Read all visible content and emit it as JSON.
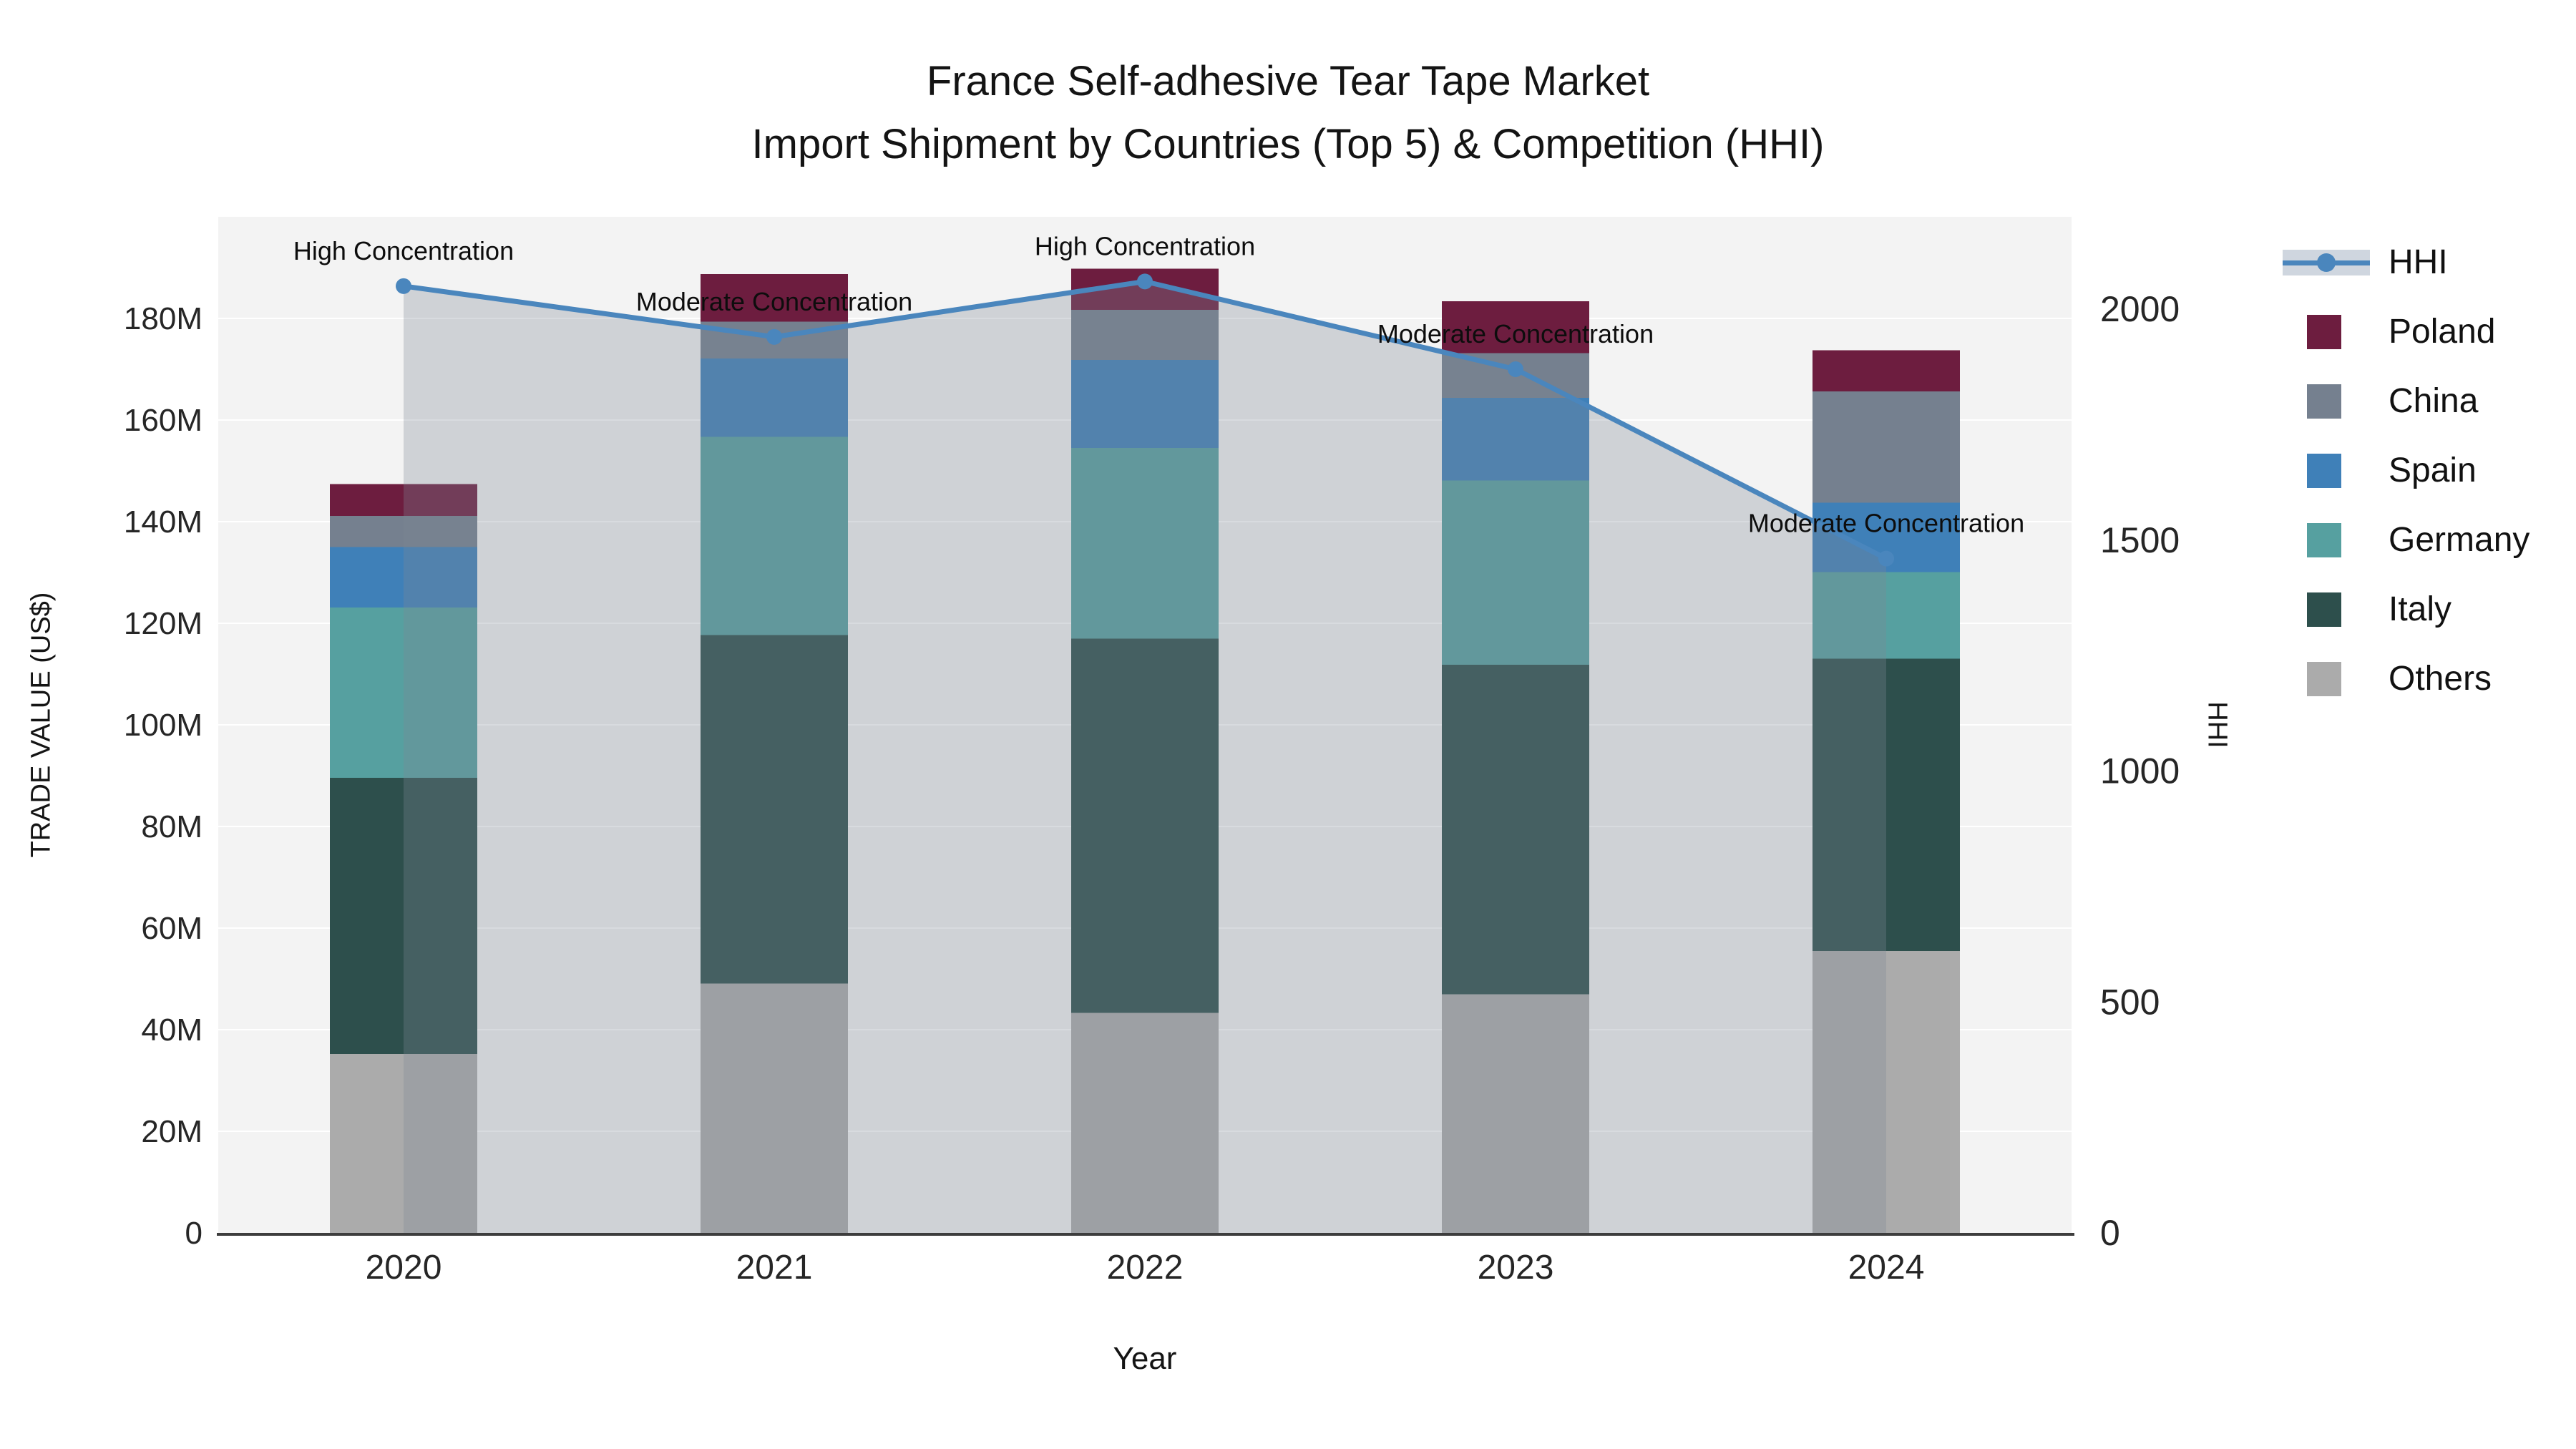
{
  "title": {
    "line1": "France Self-adhesive Tear Tape Market",
    "line2": "Import Shipment by Countries (Top 5) & Competition (HHI)"
  },
  "axes": {
    "x_title": "Year",
    "y_left_title": "TRADE VALUE (US$)",
    "y_right_title": "HHI",
    "x_ticks": [
      "2020",
      "2021",
      "2022",
      "2023",
      "2024"
    ],
    "y_left_ticks": {
      "values": [
        0,
        20,
        40,
        60,
        80,
        100,
        120,
        140,
        160,
        180
      ],
      "labels": [
        "0",
        "20M",
        "40M",
        "60M",
        "80M",
        "100M",
        "120M",
        "140M",
        "160M",
        "180M"
      ]
    },
    "y_right_ticks": {
      "values": [
        0,
        500,
        1000,
        1500,
        2000
      ],
      "labels": [
        "0",
        "500",
        "1000",
        "1500",
        "2000"
      ]
    }
  },
  "chart_data": {
    "type": "bar",
    "subtype": "stacked-bar-with-line",
    "categories": [
      "2020",
      "2021",
      "2022",
      "2023",
      "2024"
    ],
    "value_unit": "million US$",
    "series": [
      {
        "name": "Others",
        "color": "#ababab",
        "values": [
          35.2,
          49.1,
          43.3,
          47.0,
          55.5
        ]
      },
      {
        "name": "Italy",
        "color": "#2d4f4c",
        "values": [
          54.4,
          68.6,
          73.7,
          64.8,
          57.5
        ]
      },
      {
        "name": "Germany",
        "color": "#56a0a0",
        "values": [
          33.5,
          39.0,
          37.5,
          36.3,
          17.1
        ]
      },
      {
        "name": "Spain",
        "color": "#3f80b8",
        "values": [
          11.9,
          15.4,
          17.3,
          16.3,
          13.6
        ]
      },
      {
        "name": "China",
        "color": "#75808f",
        "values": [
          6.1,
          7.3,
          9.9,
          8.8,
          21.9
        ]
      },
      {
        "name": "Poland",
        "color": "#6d1d3f",
        "values": [
          6.3,
          9.3,
          8.1,
          10.2,
          8.1
        ]
      }
    ],
    "line_series": {
      "name": "HHI",
      "color": "#4a86bd",
      "fill_color": "rgba(125,135,150,0.30)",
      "legend_band_color": "#cfd6df",
      "yaxis": "right",
      "values": [
        2050,
        1940,
        2060,
        1870,
        1460
      ]
    },
    "annotations": [
      {
        "category": "2020",
        "text": "High Concentration"
      },
      {
        "category": "2021",
        "text": "Moderate Concentration"
      },
      {
        "category": "2022",
        "text": "High Concentration"
      },
      {
        "category": "2023",
        "text": "Moderate Concentration"
      },
      {
        "category": "2024",
        "text": "Moderate Concentration"
      }
    ],
    "ylim_left": [
      0,
      200
    ],
    "ylim_right": [
      0,
      2200
    ],
    "grid": true,
    "plot_background": "#f3f3f3",
    "grid_color": "#ffffff",
    "axis_line_color": "#3d3d3d",
    "legend_position": "right"
  }
}
